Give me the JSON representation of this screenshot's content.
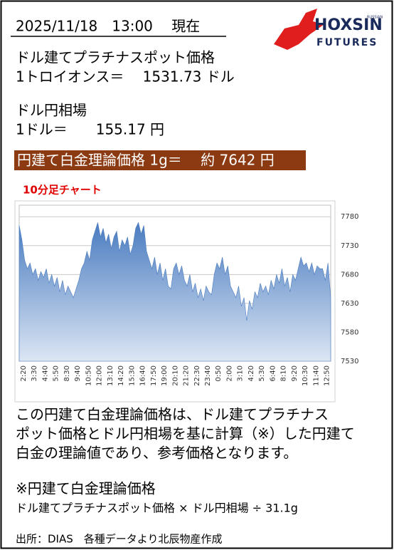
{
  "header": {
    "datetime": "2025/11/18　13:00　 現在"
  },
  "logo": {
    "brand": "HOXSIN",
    "sub": "FUTURES",
    "tag": "RUSSIAN"
  },
  "platinum": {
    "label": "ドル建てプラチナスポット価格",
    "value": "1トロイオンス＝　 1531.73 ドル"
  },
  "fx": {
    "label": "ドル円相場",
    "value": "1ドル＝　　155.17 円"
  },
  "banner": "円建て白金理論価格 1g＝　 約 7642 円",
  "chart_title": "10分足チャート",
  "chart_data": {
    "type": "area",
    "color": "#4a7cc0",
    "ylim": [
      7530,
      7800
    ],
    "yticks": [
      7530,
      7580,
      7630,
      7680,
      7730,
      7780
    ],
    "grid": true,
    "categories": [
      "2:20",
      null,
      null,
      null,
      "3:30",
      null,
      null,
      null,
      "4:40",
      null,
      null,
      null,
      "5:50",
      null,
      null,
      null,
      "8:30",
      null,
      null,
      null,
      "9:40",
      null,
      null,
      null,
      "10:50",
      null,
      null,
      null,
      "12:00",
      null,
      null,
      null,
      "13:10",
      null,
      null,
      null,
      "14:20",
      null,
      null,
      null,
      "15:30",
      null,
      null,
      null,
      "16:40",
      null,
      null,
      null,
      "17:50",
      null,
      null,
      null,
      "19:00",
      null,
      null,
      null,
      "20:10",
      null,
      null,
      null,
      "21:20",
      null,
      null,
      null,
      "22:30",
      null,
      null,
      null,
      "23:40",
      null,
      null,
      null,
      "0:50",
      null,
      null,
      null,
      "2:00",
      null,
      null,
      null,
      "3:10",
      null,
      null,
      null,
      "4:20",
      null,
      null,
      null,
      "5:30",
      null,
      null,
      null,
      "6:40",
      null,
      null,
      null,
      "8:10",
      null,
      null,
      null,
      "9:20",
      null,
      null,
      null,
      "10:30",
      null,
      null,
      null,
      "11:40",
      null,
      null,
      null,
      "12:50",
      null,
      null,
      null
    ],
    "values": [
      7765,
      7740,
      7705,
      7690,
      7700,
      7680,
      7690,
      7670,
      7685,
      7675,
      7690,
      7665,
      7680,
      7660,
      7675,
      7650,
      7670,
      7645,
      7660,
      7650,
      7640,
      7655,
      7670,
      7690,
      7700,
      7720,
      7705,
      7740,
      7755,
      7770,
      7745,
      7760,
      7735,
      7750,
      7725,
      7745,
      7755,
      7720,
      7740,
      7730,
      7745,
      7715,
      7730,
      7760,
      7770,
      7750,
      7765,
      7720,
      7705,
      7690,
      7710,
      7680,
      7700,
      7670,
      7690,
      7660,
      7655,
      7690,
      7700,
      7680,
      7695,
      7670,
      7660,
      7680,
      7650,
      7665,
      7640,
      7655,
      7635,
      7660,
      7650,
      7645,
      7680,
      7700,
      7690,
      7710,
      7680,
      7695,
      7660,
      7650,
      7640,
      7660,
      7625,
      7640,
      7600,
      7635,
      7620,
      7650,
      7640,
      7665,
      7650,
      7660,
      7645,
      7670,
      7655,
      7680,
      7665,
      7690,
      7660,
      7675,
      7650,
      7680,
      7670,
      7690,
      7710,
      7695,
      7700,
      7685,
      7700,
      7680,
      7695,
      7690,
      7690,
      7670,
      7700,
      7640
    ]
  },
  "explanation": [
    "この円建て白金理論価格は、ドル建てプラチナス",
    "ポット価格とドル円相場を基に計算（※）した円建て",
    "白金の理論値であり、参考価格となります。"
  ],
  "formula": {
    "title": "※円建て白金理論価格",
    "text": "ドル建てプラチナスポット価格 × ドル円相場 ÷ 31.1g"
  },
  "source": "出所：DIAS　各種データより北辰物産作成"
}
